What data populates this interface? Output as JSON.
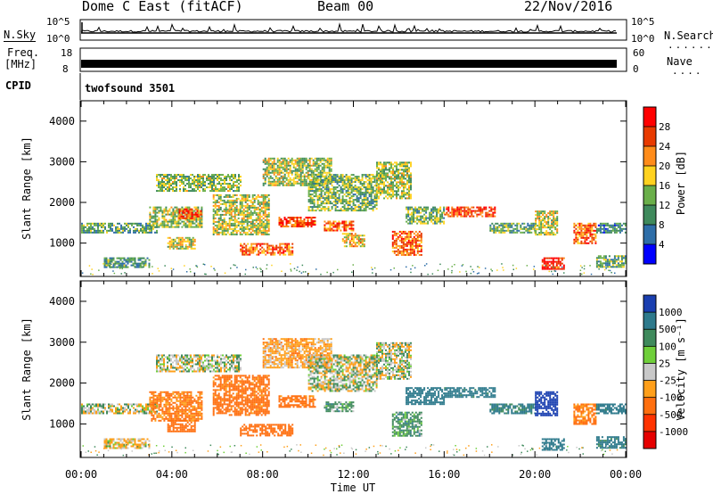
{
  "header": {
    "station": "Dome C East (fitACF)",
    "beam": "Beam 00",
    "date": "22/Nov/2016"
  },
  "nsky_panel": {
    "left_label": "N.Sky",
    "right_label": "N.Search",
    "left_ticks": [
      "10^5",
      "10^0"
    ],
    "right_ticks": [
      "10^5",
      "10^0"
    ]
  },
  "freq_panel": {
    "label_line1": "Freq.",
    "label_line2": "[MHz]",
    "left_ticks": [
      "18",
      "8"
    ],
    "right_ticks": [
      "60",
      "0"
    ],
    "right_label": "Nave"
  },
  "cpid_panel": {
    "label": "CPID",
    "value": "twofsound 3501"
  },
  "power_panel": {
    "ylabel": "Slant Range [km]",
    "yticks": [
      "4000",
      "3000",
      "2000",
      "1000"
    ],
    "colorbar_label": "Power [dB]",
    "colorbar_ticks": [
      "28",
      "24",
      "20",
      "16",
      "12",
      "8",
      "4"
    ],
    "colorbar_colors": [
      "#ff0000",
      "#e83a00",
      "#ff8c1a",
      "#ffd21f",
      "#6aaf4a",
      "#3f8a5c",
      "#2e6ea8",
      "#0000ff"
    ]
  },
  "velocity_panel": {
    "ylabel": "Slant Range [km]",
    "yticks": [
      "4000",
      "3000",
      "2000",
      "1000"
    ],
    "colorbar_label": "Velocity [m s⁻¹]",
    "colorbar_ticks": [
      "1000",
      "500",
      "100",
      "25",
      "-25",
      "-100",
      "-500",
      "-1000"
    ],
    "colorbar_colors": [
      "#1a3fb0",
      "#2e7a8c",
      "#3f8a5c",
      "#6fcf3a",
      "#c8c8c8",
      "#ff9f1a",
      "#ff6f0f",
      "#ff3300",
      "#e60000"
    ]
  },
  "xaxis": {
    "ticks": [
      "00:00",
      "04:00",
      "08:00",
      "12:00",
      "16:00",
      "20:00",
      "00:00"
    ],
    "label": "Time UT"
  },
  "chart_data": [
    {
      "type": "heatmap",
      "title": "Power",
      "x_range_hours": [
        0,
        24
      ],
      "ylim_km": [
        180,
        4500
      ],
      "colorbar_range": [
        0,
        30
      ],
      "blobs": [
        {
          "t0": 0.0,
          "t1": 3.3,
          "r0": 1250,
          "r1": 1500,
          "value": 10
        },
        {
          "t0": 1.0,
          "t1": 3.0,
          "r0": 420,
          "r1": 650,
          "value": 9
        },
        {
          "t0": 3.0,
          "t1": 5.3,
          "r0": 1400,
          "r1": 1900,
          "value": 14
        },
        {
          "t0": 4.3,
          "t1": 5.3,
          "r0": 1600,
          "r1": 1850,
          "value": 26
        },
        {
          "t0": 3.3,
          "t1": 7.0,
          "r0": 2300,
          "r1": 2700,
          "value": 13
        },
        {
          "t0": 3.8,
          "t1": 5.0,
          "r0": 850,
          "r1": 1150,
          "value": 15
        },
        {
          "t0": 5.8,
          "t1": 8.3,
          "r0": 1200,
          "r1": 2200,
          "value": 15
        },
        {
          "t0": 7.0,
          "t1": 9.3,
          "r0": 700,
          "r1": 1000,
          "value": 24
        },
        {
          "t0": 8.0,
          "t1": 11.0,
          "r0": 2400,
          "r1": 3100,
          "value": 14
        },
        {
          "t0": 8.7,
          "t1": 10.3,
          "r0": 1400,
          "r1": 1650,
          "value": 26
        },
        {
          "t0": 10.0,
          "t1": 13.0,
          "r0": 1800,
          "r1": 2700,
          "value": 12
        },
        {
          "t0": 10.7,
          "t1": 12.0,
          "r0": 1300,
          "r1": 1550,
          "value": 24
        },
        {
          "t0": 11.5,
          "t1": 12.5,
          "r0": 900,
          "r1": 1250,
          "value": 18
        },
        {
          "t0": 13.0,
          "t1": 14.5,
          "r0": 2100,
          "r1": 3000,
          "value": 14
        },
        {
          "t0": 13.7,
          "t1": 15.0,
          "r0": 700,
          "r1": 1300,
          "value": 24
        },
        {
          "t0": 14.3,
          "t1": 16.0,
          "r0": 1500,
          "r1": 1900,
          "value": 12
        },
        {
          "t0": 16.0,
          "t1": 18.2,
          "r0": 1650,
          "r1": 1900,
          "value": 26
        },
        {
          "t0": 18.0,
          "t1": 20.0,
          "r0": 1250,
          "r1": 1500,
          "value": 10
        },
        {
          "t0": 20.0,
          "t1": 21.0,
          "r0": 1200,
          "r1": 1800,
          "value": 16
        },
        {
          "t0": 20.3,
          "t1": 21.3,
          "r0": 350,
          "r1": 650,
          "value": 30
        },
        {
          "t0": 21.7,
          "t1": 22.7,
          "r0": 1000,
          "r1": 1500,
          "value": 24
        },
        {
          "t0": 22.7,
          "t1": 24.0,
          "r0": 1250,
          "r1": 1500,
          "value": 8
        },
        {
          "t0": 22.7,
          "t1": 24.0,
          "r0": 400,
          "r1": 700,
          "value": 10
        }
      ]
    },
    {
      "type": "heatmap",
      "title": "Velocity",
      "x_range_hours": [
        0,
        24
      ],
      "ylim_km": [
        180,
        4500
      ],
      "colorbar_range": [
        -1000,
        1000
      ],
      "blobs": [
        {
          "t0": 0.0,
          "t1": 3.3,
          "r0": 1250,
          "r1": 1500,
          "value": 0
        },
        {
          "t0": 1.0,
          "t1": 3.0,
          "r0": 420,
          "r1": 650,
          "value": -30
        },
        {
          "t0": 3.0,
          "t1": 5.3,
          "r0": 1100,
          "r1": 1800,
          "value": -120
        },
        {
          "t0": 3.3,
          "t1": 7.0,
          "r0": 2300,
          "r1": 2700,
          "value": 0
        },
        {
          "t0": 3.8,
          "t1": 5.0,
          "r0": 800,
          "r1": 1100,
          "value": -200
        },
        {
          "t0": 5.8,
          "t1": 8.3,
          "r0": 1200,
          "r1": 2200,
          "value": -150
        },
        {
          "t0": 7.0,
          "t1": 9.3,
          "r0": 700,
          "r1": 1000,
          "value": -200
        },
        {
          "t0": 8.0,
          "t1": 11.0,
          "r0": 2400,
          "r1": 3100,
          "value": -60
        },
        {
          "t0": 8.7,
          "t1": 10.3,
          "r0": 1400,
          "r1": 1700,
          "value": -150
        },
        {
          "t0": 10.0,
          "t1": 13.0,
          "r0": 1800,
          "r1": 2700,
          "value": 0
        },
        {
          "t0": 10.7,
          "t1": 12.0,
          "r0": 1300,
          "r1": 1550,
          "value": 50
        },
        {
          "t0": 13.0,
          "t1": 14.5,
          "r0": 2100,
          "r1": 3000,
          "value": 0
        },
        {
          "t0": 13.7,
          "t1": 15.0,
          "r0": 700,
          "r1": 1300,
          "value": 60
        },
        {
          "t0": 14.3,
          "t1": 16.0,
          "r0": 1500,
          "r1": 1900,
          "value": 200
        },
        {
          "t0": 16.0,
          "t1": 18.2,
          "r0": 1650,
          "r1": 1900,
          "value": 150
        },
        {
          "t0": 18.0,
          "t1": 20.0,
          "r0": 1250,
          "r1": 1500,
          "value": 120
        },
        {
          "t0": 20.0,
          "t1": 21.0,
          "r0": 1200,
          "r1": 1800,
          "value": 600
        },
        {
          "t0": 20.3,
          "t1": 21.3,
          "r0": 350,
          "r1": 650,
          "value": 200
        },
        {
          "t0": 21.7,
          "t1": 22.7,
          "r0": 1000,
          "r1": 1500,
          "value": -120
        },
        {
          "t0": 22.7,
          "t1": 24.0,
          "r0": 1250,
          "r1": 1500,
          "value": 150
        },
        {
          "t0": 22.7,
          "t1": 24.0,
          "r0": 400,
          "r1": 700,
          "value": 150
        }
      ]
    }
  ]
}
